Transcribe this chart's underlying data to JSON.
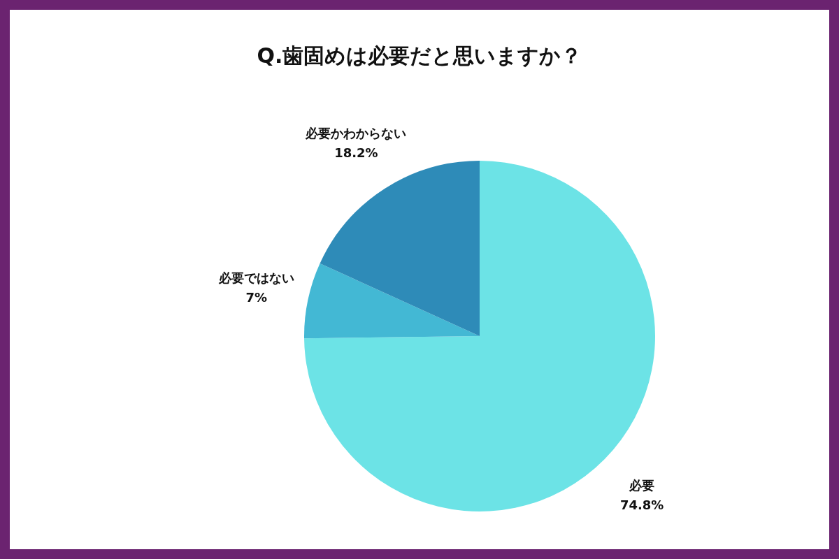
{
  "chart_data": {
    "type": "pie",
    "title": "Q.歯固めは必要だと思いますか？",
    "categories": [
      "必要",
      "必要ではない",
      "必要かわからない"
    ],
    "values": [
      74.8,
      7,
      18.2
    ],
    "colors": [
      "#6ce3e6",
      "#43b8d4",
      "#2e8bb8"
    ],
    "value_labels": [
      "74.8%",
      "7%",
      "18.2%"
    ]
  }
}
